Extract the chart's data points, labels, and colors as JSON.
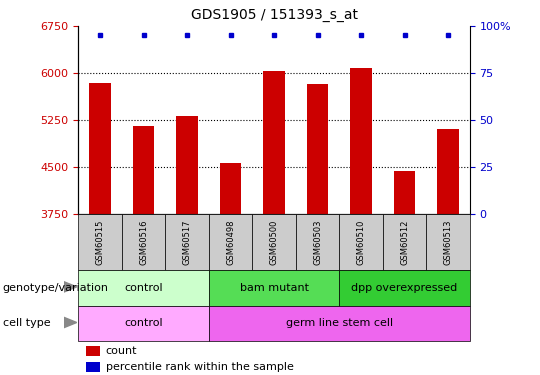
{
  "title": "GDS1905 / 151393_s_at",
  "samples": [
    "GSM60515",
    "GSM60516",
    "GSM60517",
    "GSM60498",
    "GSM60500",
    "GSM60503",
    "GSM60510",
    "GSM60512",
    "GSM60513"
  ],
  "bar_values": [
    5850,
    5150,
    5320,
    4570,
    6040,
    5830,
    6080,
    4440,
    5100
  ],
  "bar_color": "#cc0000",
  "dot_color": "#0000cc",
  "ylim_left": [
    3750,
    6750
  ],
  "ylim_right": [
    0,
    100
  ],
  "yticks_left": [
    3750,
    4500,
    5250,
    6000,
    6750
  ],
  "yticks_right": [
    0,
    25,
    50,
    75,
    100
  ],
  "ytick_labels_right": [
    "0",
    "25",
    "50",
    "75",
    "100%"
  ],
  "grid_values": [
    4500,
    5250,
    6000
  ],
  "groups": [
    {
      "label": "control",
      "start": 0,
      "end": 3,
      "color": "#ccffcc"
    },
    {
      "label": "bam mutant",
      "start": 3,
      "end": 6,
      "color": "#55dd55"
    },
    {
      "label": "dpp overexpressed",
      "start": 6,
      "end": 9,
      "color": "#33cc33"
    }
  ],
  "cell_types": [
    {
      "label": "control",
      "start": 0,
      "end": 3,
      "color": "#ffaaff"
    },
    {
      "label": "germ line stem cell",
      "start": 3,
      "end": 9,
      "color": "#ee66ee"
    }
  ],
  "row_labels": [
    "genotype/variation",
    "cell type"
  ],
  "legend_items": [
    {
      "color": "#cc0000",
      "label": "count"
    },
    {
      "color": "#0000cc",
      "label": "percentile rank within the sample"
    }
  ],
  "title_fontsize": 10,
  "axis_label_color_left": "#cc0000",
  "axis_label_color_right": "#0000cc",
  "sample_box_color": "#cccccc",
  "bar_width": 0.5
}
